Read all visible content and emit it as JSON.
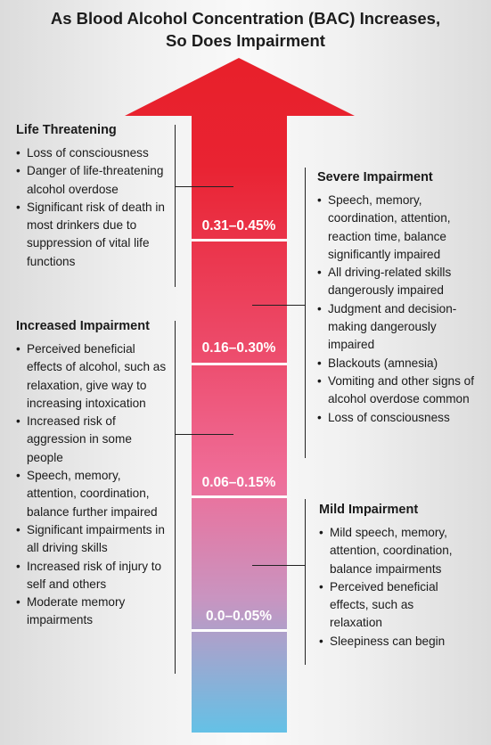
{
  "title": {
    "line1": "As Blood Alcohol Concentration (BAC) Increases,",
    "line2": "So Does Impairment"
  },
  "ranges": [
    {
      "label": "0.31–0.45%"
    },
    {
      "label": "0.16–0.30%"
    },
    {
      "label": "0.06–0.15%"
    },
    {
      "label": "0.0–0.05%"
    }
  ],
  "life_threatening": {
    "heading": "Life Threatening",
    "items": [
      "Loss of consciousness",
      "Danger of life-threatening alcohol overdose",
      "Significant risk of death in most drinkers due to suppression of vital life functions"
    ]
  },
  "increased_impairment": {
    "heading": "Increased Impairment",
    "items": [
      "Perceived beneficial effects of alcohol, such as relaxation, give way to increasing intoxication",
      "Increased risk of aggression in some people",
      "Speech, memory, attention, coordination, balance further impaired",
      "Significant impairments in all driving skills",
      "Increased risk of injury to self and others",
      "Moderate memory impairments"
    ]
  },
  "severe_impairment": {
    "heading": "Severe Impairment",
    "items": [
      "Speech, memory, coordination, attention, reaction time, balance significantly impaired",
      "All driving-related skills dangerously impaired",
      "Judgment and decision-making dangerously impaired",
      "Blackouts (amnesia)",
      "Vomiting and other signs of alcohol overdose common",
      "Loss of consciousness"
    ]
  },
  "mild_impairment": {
    "heading": "Mild Impairment",
    "items": [
      "Mild speech, memory, attention, coordination, balance impairments",
      "Perceived beneficial effects, such as relaxation",
      "Sleepiness can begin"
    ]
  },
  "colors": {
    "arrow_top": "#e8202a",
    "arrow_mid": "#ef6a90",
    "arrow_lower": "#c691b9",
    "arrow_bottom": "#64c1e6"
  }
}
